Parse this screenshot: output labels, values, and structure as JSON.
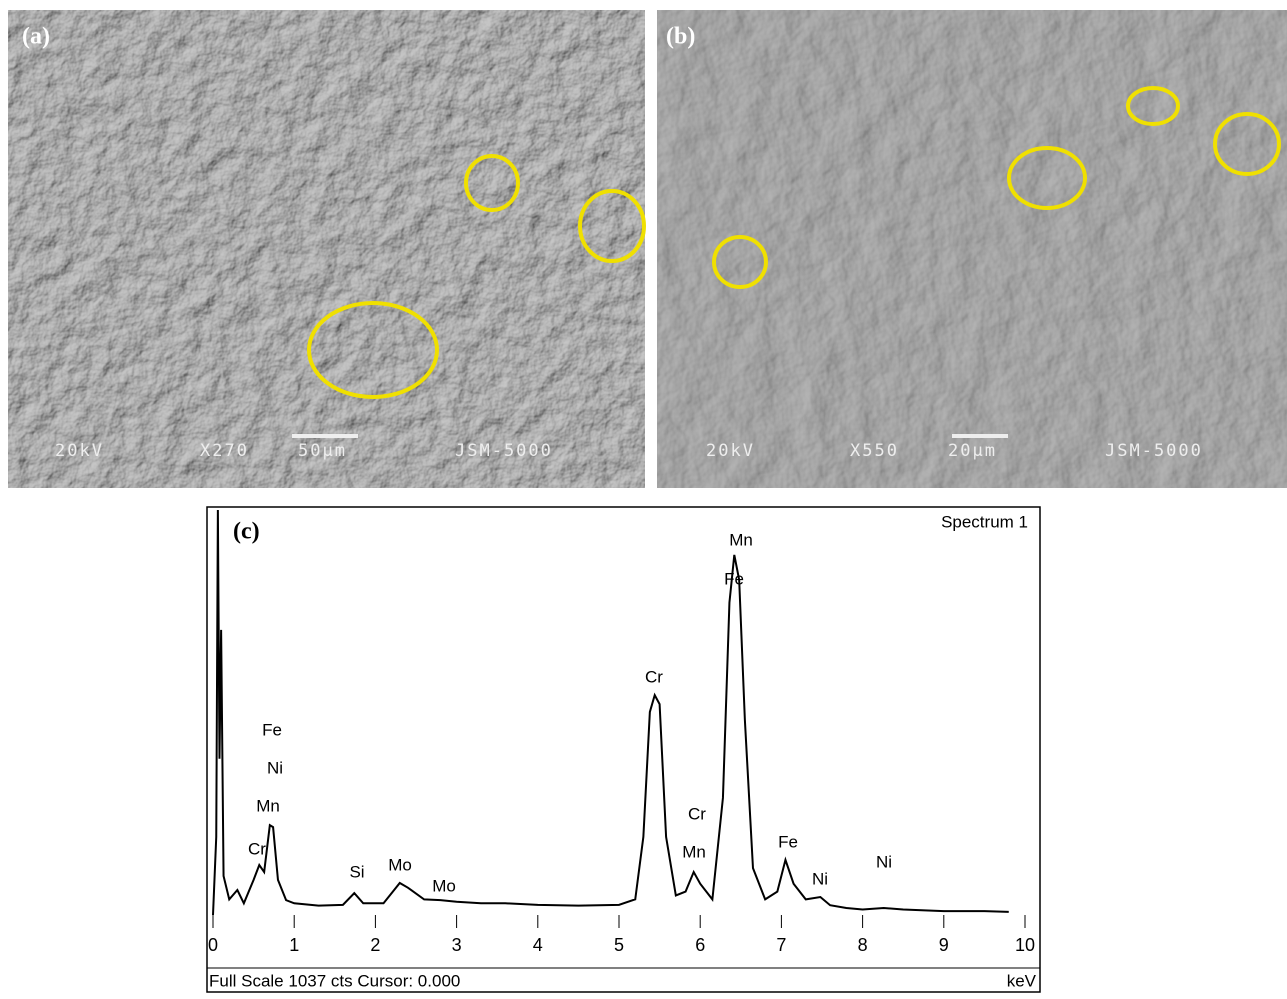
{
  "images": [
    {
      "label": "(a)",
      "voltage": "20kV",
      "magnification": "X270",
      "scale": "50μm",
      "instrument": "JSM-5000"
    },
    {
      "label": "(b)",
      "voltage": "20kV",
      "magnification": "X550",
      "scale": "20μm",
      "instrument": "JSM-5000"
    }
  ],
  "chart_data": {
    "type": "line",
    "panel_label": "(c)",
    "title": "Spectrum 1",
    "xlabel": "keV",
    "footer": "Full Scale 1037 cts Cursor: 0.000",
    "color": "#000000",
    "x": [
      0,
      0.04,
      0.06,
      0.08,
      0.1,
      0.13,
      0.2,
      0.3,
      0.38,
      0.5,
      0.57,
      0.63,
      0.7,
      0.74,
      0.8,
      0.9,
      1.0,
      1.3,
      1.6,
      1.74,
      1.85,
      2.1,
      2.3,
      2.4,
      2.6,
      2.8,
      3.0,
      3.3,
      3.6,
      4.0,
      4.5,
      5.0,
      5.2,
      5.3,
      5.38,
      5.44,
      5.5,
      5.58,
      5.7,
      5.82,
      5.92,
      6.0,
      6.15,
      6.28,
      6.36,
      6.42,
      6.48,
      6.55,
      6.65,
      6.8,
      6.95,
      7.05,
      7.15,
      7.3,
      7.48,
      7.6,
      7.8,
      8.0,
      8.26,
      8.5,
      9.0,
      9.5,
      9.8
    ],
    "values": [
      0,
      200,
      1037,
      400,
      730,
      100,
      40,
      64,
      30,
      90,
      128,
      110,
      230,
      225,
      90,
      38,
      30,
      24,
      26,
      56,
      30,
      30,
      82,
      70,
      40,
      38,
      34,
      30,
      30,
      26,
      24,
      26,
      40,
      200,
      520,
      563,
      540,
      200,
      50,
      60,
      110,
      80,
      40,
      300,
      800,
      922,
      858,
      500,
      120,
      40,
      60,
      141,
      80,
      40,
      46,
      25,
      18,
      14,
      18,
      14,
      10,
      10,
      8
    ],
    "xlim": [
      0,
      10
    ],
    "xticks": [
      0,
      1,
      2,
      3,
      4,
      5,
      6,
      7,
      8,
      9,
      10
    ],
    "ylim": [
      0,
      1037
    ],
    "annotations": [
      "Mn",
      "Fe",
      "Cr",
      "Cr",
      "Mn",
      "Fe",
      "Ni",
      "Ni",
      "Fe",
      "Ni",
      "Mn",
      "Cr",
      "Si",
      "Mo",
      "Mo"
    ]
  }
}
